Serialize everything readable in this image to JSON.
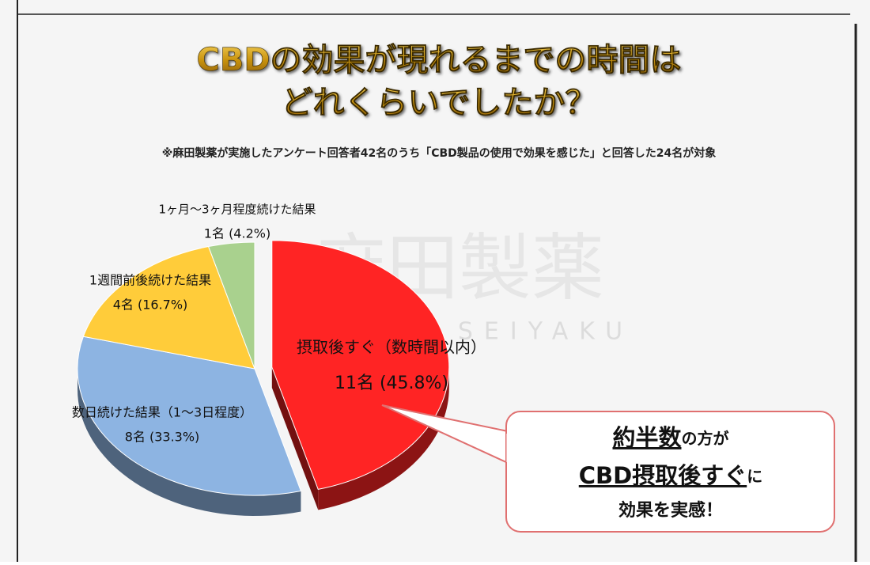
{
  "chart_data": {
    "type": "pie",
    "title": [
      "CBDの効果が現れるまでの時間は",
      "どれくらいでしたか？"
    ],
    "subtitle": "※麻田製薬が実施したアンケート回答者42名のうち「CBD製品の使用で効果を感じた」と回答した24名が対象",
    "categories": [
      "摂取後すぐ（数時間以内）",
      "数日続けた結果（1〜3日程度）",
      "1週間前後続けた結果",
      "1ヶ月〜3ヶ月程度続けた結果"
    ],
    "values": [
      45.8,
      33.3,
      16.7,
      4.2
    ],
    "value_labels": [
      "11名 (45.8%)",
      "8名 (33.3%)",
      "4名 (16.7%)",
      "1名 (4.2%)"
    ],
    "colors": [
      "#ff2424",
      "#8db4e2",
      "#ffcc3a",
      "#a9d18e"
    ],
    "explode": [
      true,
      false,
      false,
      false
    ],
    "watermark": [
      "麻田製薬",
      "SEIYAKU"
    ],
    "callout": [
      [
        {
          "text": "約半数",
          "emphasis": true
        },
        {
          "text": "の方が",
          "emphasis": false
        }
      ],
      [
        {
          "text": "CBD摂取後すぐ",
          "emphasis": true
        },
        {
          "text": "に",
          "emphasis": false
        }
      ],
      [
        {
          "text": "効果を実感！",
          "emphasis": false
        }
      ]
    ]
  }
}
